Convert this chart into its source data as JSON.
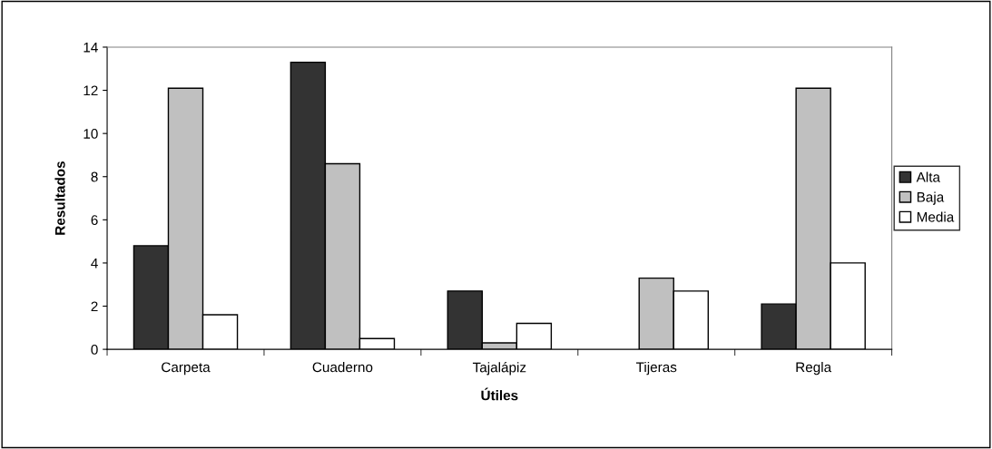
{
  "chart_data": {
    "type": "bar",
    "xlabel": "Útiles",
    "ylabel": "Resultados",
    "categories": [
      "Carpeta",
      "Cuaderno",
      "Tajalápiz",
      "Tijeras",
      "Regla"
    ],
    "series": [
      {
        "name": "Alta",
        "color": "#333333",
        "values": [
          4.8,
          13.3,
          2.7,
          null,
          2.1
        ]
      },
      {
        "name": "Baja",
        "color": "#c0c0c0",
        "values": [
          12.1,
          8.6,
          0.3,
          3.3,
          12.1
        ]
      },
      {
        "name": "Media",
        "color": "#ffffff",
        "values": [
          1.6,
          0.5,
          1.2,
          2.7,
          4.0
        ]
      }
    ],
    "ylim": [
      0,
      14
    ],
    "yticks": [
      0,
      2,
      4,
      6,
      8,
      10,
      12,
      14
    ],
    "grid": false,
    "legend": "right"
  }
}
